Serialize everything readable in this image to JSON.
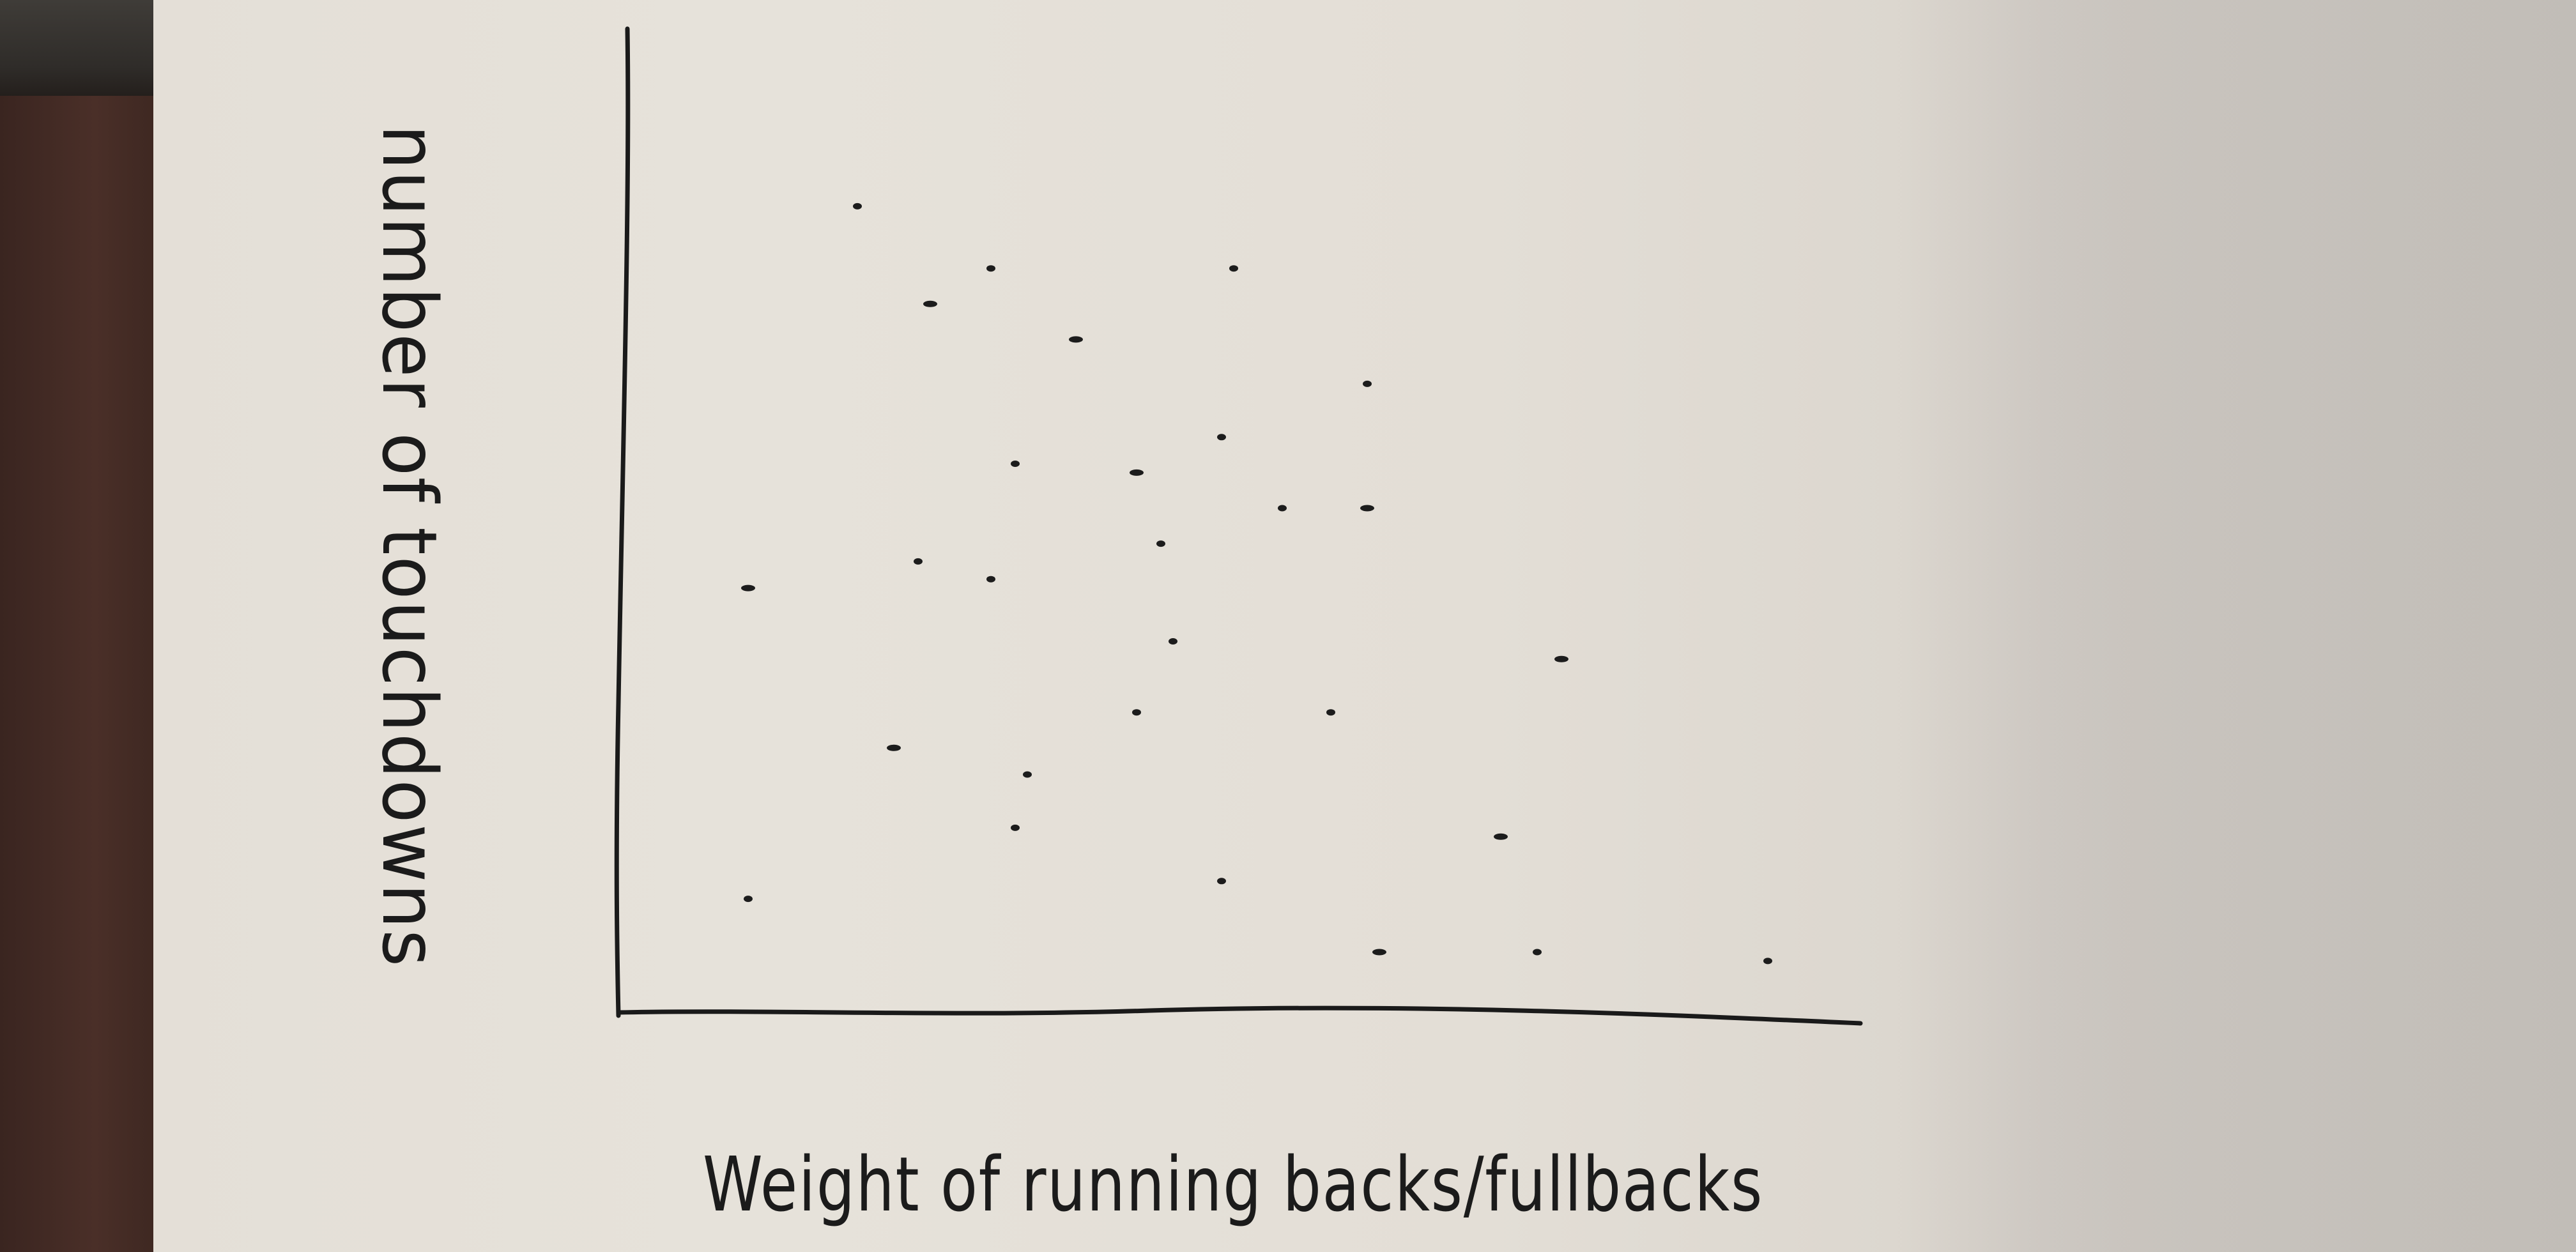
{
  "chart_data": {
    "type": "scatter",
    "title": "",
    "xlabel": "Weight of running backs/fullbacks",
    "ylabel": "number of touchdowns",
    "grid": false,
    "legend": "none",
    "xlim": [
      0,
      100
    ],
    "ylim": [
      0,
      100
    ],
    "points": [
      {
        "x": 18,
        "y": 89
      },
      {
        "x": 24,
        "y": 78
      },
      {
        "x": 29,
        "y": 82
      },
      {
        "x": 49,
        "y": 82
      },
      {
        "x": 36,
        "y": 74
      },
      {
        "x": 60,
        "y": 69
      },
      {
        "x": 31,
        "y": 60
      },
      {
        "x": 41,
        "y": 59
      },
      {
        "x": 48,
        "y": 63
      },
      {
        "x": 53,
        "y": 55
      },
      {
        "x": 60,
        "y": 55
      },
      {
        "x": 23,
        "y": 49
      },
      {
        "x": 29,
        "y": 47
      },
      {
        "x": 9,
        "y": 46
      },
      {
        "x": 43,
        "y": 51
      },
      {
        "x": 44,
        "y": 40
      },
      {
        "x": 76,
        "y": 38
      },
      {
        "x": 57,
        "y": 32
      },
      {
        "x": 41,
        "y": 32
      },
      {
        "x": 21,
        "y": 28
      },
      {
        "x": 32,
        "y": 25
      },
      {
        "x": 31,
        "y": 19
      },
      {
        "x": 71,
        "y": 18
      },
      {
        "x": 48,
        "y": 13
      },
      {
        "x": 9,
        "y": 11
      },
      {
        "x": 61,
        "y": 5
      },
      {
        "x": 74,
        "y": 5
      },
      {
        "x": 93,
        "y": 4
      }
    ]
  }
}
